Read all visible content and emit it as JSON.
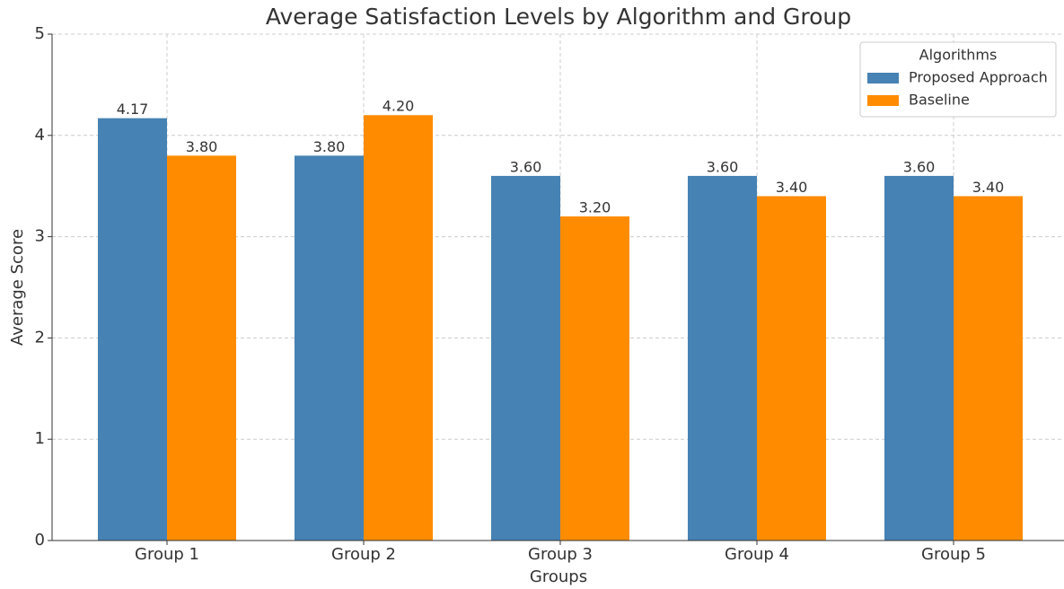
{
  "chart_data": {
    "type": "bar",
    "title": "Average Satisfaction Levels by Algorithm and Group",
    "x_label": "Groups",
    "y_label": "Average Score",
    "categories": [
      "Group 1",
      "Group 2",
      "Group 3",
      "Group 4",
      "Group 5"
    ],
    "series": [
      {
        "name": "Proposed Approach",
        "color": "#4682b4",
        "values": [
          4.17,
          3.8,
          3.6,
          3.6,
          3.6
        ],
        "value_labels": [
          "4.17",
          "3.80",
          "3.60",
          "3.60",
          "3.60"
        ]
      },
      {
        "name": "Baseline",
        "color": "#ff8c00",
        "values": [
          3.8,
          4.2,
          3.2,
          3.4,
          3.4
        ],
        "value_labels": [
          "3.80",
          "4.20",
          "3.20",
          "3.40",
          "3.40"
        ]
      }
    ],
    "ylim": [
      0,
      5
    ],
    "yticks": [
      0,
      1,
      2,
      3,
      4,
      5
    ],
    "grid": true,
    "legend_title": "Algorithms",
    "legend_position": "upper right"
  }
}
